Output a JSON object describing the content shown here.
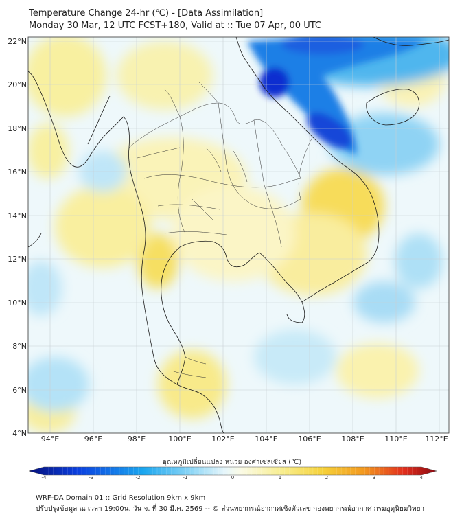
{
  "header": {
    "title": "Temperature Change 24-hr (℃) - [Data Assimilation]",
    "subtitle": "Monday 30 Mar, 12 UTC FCST+180, Valid at :: Tue 07 Apr, 00 UTC"
  },
  "map": {
    "lat_labels": [
      "22°N",
      "20°N",
      "18°N",
      "16°N",
      "14°N",
      "12°N",
      "10°N",
      "8°N",
      "6°N",
      "4°N"
    ],
    "lon_labels": [
      "94°E",
      "96°E",
      "98°E",
      "100°E",
      "102°E",
      "104°E",
      "106°E",
      "108°E",
      "110°E",
      "112°E"
    ],
    "lat_range": [
      4,
      22
    ],
    "lon_range": [
      93,
      112.5
    ]
  },
  "colorbar": {
    "label": "อุณหภูมิเปลี่ยนแปลง หน่วย องศาเซลเซียส (℃)",
    "ticks": [
      "-4",
      "-3",
      "-2",
      "-1",
      "0",
      "1",
      "2",
      "3",
      "4"
    ],
    "range": [
      -4,
      4
    ]
  },
  "footer": {
    "line1": "WRF-DA Domain 01 :: Grid Resolution 9km x 9km",
    "line2": "ปรับปรุงข้อมูล ณ เวลา 19:00น. วัน จ. ที่ 30 มี.ค. 2569 -- © ส่วนพยากรณ์อากาศเชิงตัวเลข กองพยากรณ์อากาศ กรมอุตุนิยมวิทยา"
  },
  "colors": {
    "cold_strong": "#0a2fd0",
    "cold": "#2aa8f0",
    "cool": "#bfe6f8",
    "neutral": "#f4f8f6",
    "warm": "#f8f0a0",
    "warmer": "#f6dc50",
    "hot": "#e8232a"
  }
}
